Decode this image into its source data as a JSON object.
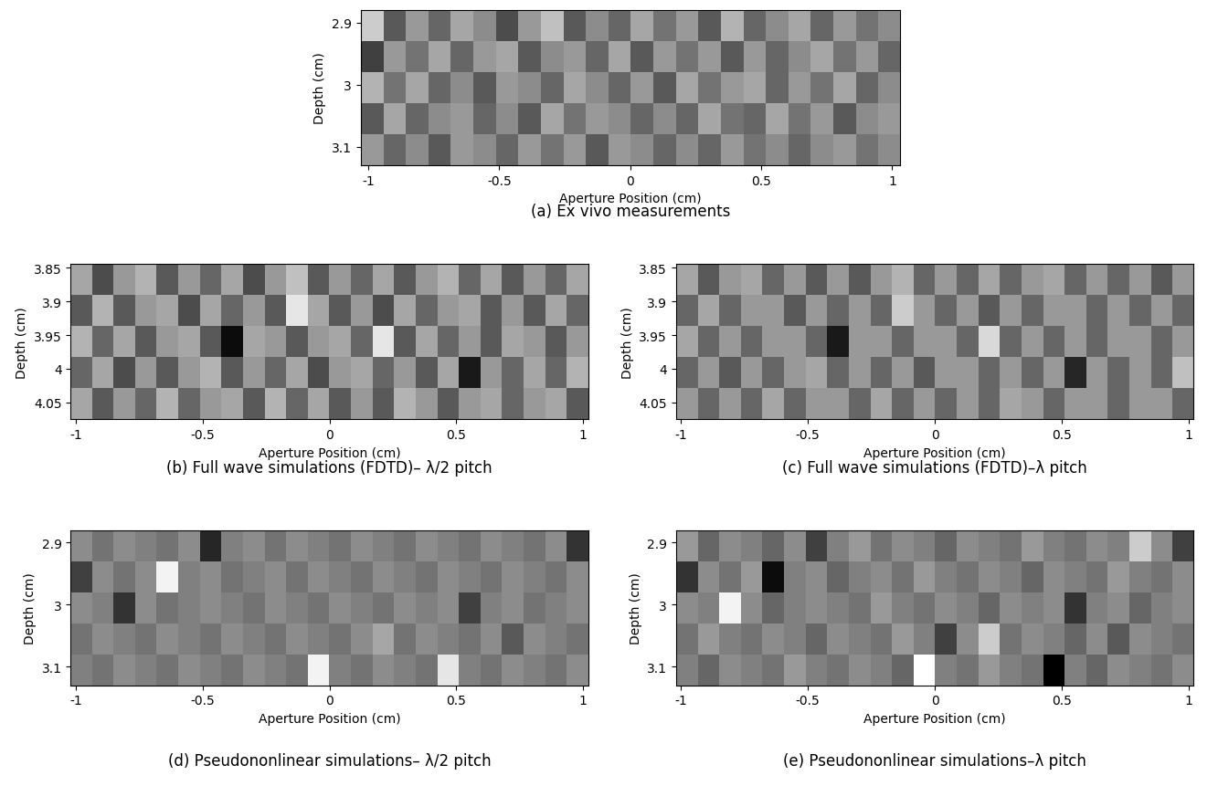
{
  "chart_data": [
    {
      "type": "heatmap",
      "caption": "(a) Ex vivo measurements",
      "xlabel": "Aperture Position (cm)",
      "ylabel": "Depth (cm)",
      "xlim": [
        -1.03,
        1.03
      ],
      "ylim": [
        3.13,
        2.88
      ],
      "xticks": [
        -1,
        -0.5,
        0,
        0.5,
        1
      ],
      "yticks": [
        2.9,
        3,
        3.1
      ],
      "cell_range": [
        -1,
        1
      ],
      "cells": [
        [
          0.6,
          -0.3,
          0.2,
          -0.2,
          0.3,
          0.1,
          -0.4,
          0.2,
          0.5,
          -0.3,
          0.1,
          -0.2,
          0.3,
          -0.1,
          0.2,
          -0.3,
          0.4,
          -0.2,
          0.1,
          0.3,
          -0.2,
          0.2,
          -0.1,
          0.1
        ],
        [
          -0.5,
          0.2,
          -0.1,
          0.3,
          -0.2,
          0.2,
          0.3,
          -0.3,
          0.1,
          0.2,
          -0.2,
          0.3,
          -0.3,
          0.2,
          -0.1,
          0.2,
          -0.3,
          0.2,
          -0.2,
          0.1,
          0.3,
          -0.1,
          0.2,
          -0.2
        ],
        [
          0.4,
          -0.1,
          0.3,
          -0.2,
          0.1,
          -0.3,
          0.2,
          0.1,
          -0.2,
          0.3,
          0.1,
          -0.2,
          0.2,
          -0.3,
          0.3,
          -0.1,
          0.2,
          0.3,
          -0.2,
          0.2,
          -0.1,
          0.3,
          -0.2,
          0.1
        ],
        [
          -0.3,
          0.3,
          -0.2,
          0.1,
          0.2,
          -0.2,
          0.1,
          -0.3,
          0.3,
          -0.1,
          0.2,
          0.1,
          -0.2,
          0.1,
          -0.2,
          0.3,
          -0.1,
          -0.2,
          0.3,
          -0.1,
          0.2,
          -0.3,
          0.1,
          0.2
        ],
        [
          0.2,
          -0.2,
          0.1,
          -0.3,
          0.2,
          0.1,
          -0.2,
          0.2,
          -0.1,
          0.2,
          -0.3,
          0.2,
          0.1,
          -0.2,
          0.1,
          -0.2,
          0.2,
          -0.1,
          0.1,
          -0.2,
          0.1,
          0.2,
          -0.1,
          0.1
        ]
      ]
    },
    {
      "type": "heatmap",
      "caption": "(b) Full wave simulations (FDTD)– λ/2 pitch",
      "xlabel": "Aperture Position (cm)",
      "ylabel": "Depth (cm)",
      "xlim": [
        -1.02,
        1.02
      ],
      "ylim": [
        4.075,
        3.845
      ],
      "xticks": [
        -1,
        -0.5,
        0,
        0.5,
        1
      ],
      "yticks": [
        3.85,
        3.9,
        3.95,
        4,
        4.05
      ],
      "cell_range": [
        -1,
        1
      ],
      "cells": [
        [
          0.3,
          -0.4,
          0.2,
          0.4,
          -0.3,
          0.2,
          -0.2,
          0.3,
          -0.4,
          0.2,
          0.5,
          -0.3,
          0.2,
          -0.2,
          0.3,
          -0.3,
          0.2,
          0.4,
          -0.2,
          0.3,
          -0.3,
          0.2,
          -0.2,
          0.3
        ],
        [
          -0.3,
          0.4,
          -0.3,
          0.2,
          0.3,
          -0.4,
          0.3,
          -0.2,
          0.2,
          -0.3,
          0.8,
          0.3,
          -0.3,
          0.2,
          -0.4,
          0.3,
          -0.2,
          0.2,
          0.3,
          -0.3,
          0.2,
          -0.3,
          0.3,
          -0.2
        ],
        [
          0.4,
          -0.2,
          0.3,
          -0.3,
          0.2,
          0.3,
          -0.3,
          -0.9,
          0.3,
          0.2,
          -0.3,
          0.2,
          0.3,
          -0.2,
          0.8,
          -0.3,
          0.3,
          -0.2,
          0.2,
          -0.3,
          0.3,
          0.2,
          -0.3,
          0.2
        ],
        [
          -0.2,
          0.3,
          -0.4,
          0.2,
          -0.3,
          0.2,
          0.4,
          -0.3,
          0.2,
          -0.2,
          0.3,
          -0.4,
          0.2,
          0.3,
          -0.2,
          0.2,
          -0.3,
          0.3,
          -0.8,
          0.2,
          -0.2,
          0.3,
          -0.2,
          0.4
        ],
        [
          0.3,
          -0.3,
          0.2,
          -0.2,
          0.4,
          -0.2,
          0.2,
          0.3,
          -0.3,
          0.4,
          -0.2,
          0.3,
          -0.3,
          0.2,
          -0.3,
          0.4,
          0.2,
          -0.3,
          0.2,
          0.3,
          -0.2,
          0.2,
          0.3,
          -0.3
        ]
      ]
    },
    {
      "type": "heatmap",
      "caption": "(c) Full wave simulations (FDTD)–λ pitch",
      "xlabel": "Aperture Position (cm)",
      "ylabel": "Depth (cm)",
      "xlim": [
        -1.02,
        1.02
      ],
      "ylim": [
        4.075,
        3.845
      ],
      "xticks": [
        -1,
        -0.5,
        0,
        0.5,
        1
      ],
      "yticks": [
        3.85,
        3.9,
        3.95,
        4,
        4.05
      ],
      "cell_range": [
        -1,
        1
      ],
      "cells": [
        [
          0.3,
          -0.3,
          0.2,
          0.3,
          -0.2,
          0.2,
          -0.3,
          0.2,
          -0.3,
          0.2,
          0.4,
          -0.2,
          0.2,
          -0.2,
          0.3,
          -0.2,
          0.2,
          0.3,
          -0.2,
          0.2,
          -0.2,
          0.2,
          -0.3,
          0.2
        ],
        [
          -0.2,
          0.3,
          -0.2,
          0.2,
          0.2,
          -0.3,
          0.2,
          -0.2,
          0.2,
          -0.2,
          0.6,
          0.2,
          -0.2,
          0.2,
          -0.3,
          0.2,
          -0.2,
          0.2,
          0.2,
          -0.2,
          0.2,
          -0.2,
          0.2,
          -0.2
        ],
        [
          0.3,
          -0.2,
          0.2,
          -0.2,
          0.2,
          0.2,
          -0.2,
          -0.8,
          0.2,
          0.2,
          -0.2,
          0.2,
          0.2,
          -0.2,
          0.7,
          -0.2,
          0.2,
          -0.2,
          0.2,
          -0.2,
          0.2,
          0.2,
          -0.2,
          0.2
        ],
        [
          -0.2,
          0.2,
          -0.3,
          0.2,
          -0.2,
          0.2,
          0.3,
          -0.2,
          0.2,
          -0.2,
          0.2,
          -0.3,
          0.2,
          0.2,
          -0.2,
          0.2,
          -0.2,
          0.2,
          -0.7,
          0.2,
          -0.2,
          0.2,
          -0.2,
          0.5
        ],
        [
          0.2,
          -0.2,
          0.2,
          -0.2,
          0.3,
          -0.2,
          0.2,
          0.2,
          -0.2,
          0.3,
          -0.2,
          0.2,
          -0.2,
          0.2,
          -0.2,
          0.3,
          0.2,
          -0.2,
          0.2,
          0.2,
          -0.2,
          0.2,
          0.2,
          -0.2
        ]
      ]
    },
    {
      "type": "heatmap",
      "caption": "(d) Pseudononlinear simulations– λ/2 pitch",
      "xlabel": "Aperture Position (cm)",
      "ylabel": "Depth (cm)",
      "xlim": [
        -1.02,
        1.02
      ],
      "ylim": [
        3.13,
        2.88
      ],
      "xticks": [
        -1,
        -0.5,
        0,
        0.5,
        1
      ],
      "yticks": [
        2.9,
        3,
        3.1
      ],
      "cell_range": [
        -1,
        1
      ],
      "cells": [
        [
          0.1,
          -0.1,
          0.1,
          0.0,
          -0.1,
          0.1,
          -0.7,
          0.0,
          0.1,
          -0.1,
          0.1,
          0.0,
          -0.1,
          0.1,
          0.0,
          -0.1,
          0.1,
          0.0,
          -0.1,
          0.1,
          0.0,
          -0.1,
          0.1,
          -0.6
        ],
        [
          -0.5,
          0.1,
          -0.1,
          0.1,
          0.9,
          0.0,
          0.1,
          -0.1,
          0.0,
          0.1,
          -0.1,
          0.1,
          0.0,
          -0.1,
          0.1,
          0.0,
          -0.1,
          0.1,
          0.0,
          -0.1,
          0.1,
          0.0,
          -0.1,
          0.1
        ],
        [
          0.1,
          0.0,
          -0.6,
          0.1,
          -0.1,
          0.0,
          0.1,
          0.0,
          -0.1,
          0.1,
          0.0,
          -0.1,
          0.1,
          0.0,
          -0.1,
          0.1,
          0.0,
          0.1,
          -0.5,
          0.0,
          0.1,
          -0.1,
          0.0,
          0.1
        ],
        [
          -0.1,
          0.1,
          0.0,
          -0.1,
          0.1,
          0.0,
          -0.1,
          0.1,
          0.0,
          -0.1,
          0.1,
          0.0,
          -0.1,
          0.1,
          0.3,
          -0.1,
          0.1,
          0.0,
          -0.1,
          0.1,
          -0.3,
          0.1,
          0.0,
          -0.1
        ],
        [
          0.0,
          -0.1,
          0.1,
          0.0,
          -0.1,
          0.1,
          0.0,
          -0.1,
          0.1,
          0.0,
          -0.1,
          0.9,
          0.0,
          -0.1,
          0.1,
          0.0,
          -0.1,
          0.8,
          0.0,
          -0.1,
          0.1,
          0.0,
          -0.1,
          0.1
        ]
      ]
    },
    {
      "type": "heatmap",
      "caption": "(e) Pseudononlinear simulations–λ pitch",
      "xlabel": "Aperture Position (cm)",
      "ylabel": "Depth (cm)",
      "xlim": [
        -1.02,
        1.02
      ],
      "ylim": [
        3.13,
        2.88
      ],
      "xticks": [
        -1,
        -0.5,
        0,
        0.5,
        1
      ],
      "yticks": [
        2.9,
        3,
        3.1
      ],
      "cell_range": [
        -1,
        1
      ],
      "cells": [
        [
          0.2,
          -0.2,
          0.1,
          0.0,
          -0.2,
          0.1,
          -0.5,
          0.0,
          0.2,
          -0.1,
          0.1,
          0.0,
          -0.2,
          0.1,
          0.0,
          -0.1,
          0.2,
          0.0,
          -0.1,
          0.1,
          0.0,
          0.6,
          0.1,
          -0.5
        ],
        [
          -0.6,
          0.1,
          -0.1,
          0.2,
          -0.9,
          0.0,
          0.1,
          -0.2,
          0.0,
          0.1,
          -0.1,
          0.2,
          0.0,
          -0.1,
          0.1,
          0.0,
          -0.2,
          0.1,
          0.0,
          -0.1,
          0.2,
          0.0,
          -0.1,
          0.1
        ],
        [
          0.1,
          0.0,
          0.9,
          0.1,
          -0.2,
          0.0,
          0.1,
          0.0,
          -0.1,
          0.2,
          0.0,
          -0.1,
          0.1,
          0.0,
          -0.2,
          0.1,
          0.0,
          0.1,
          -0.6,
          0.0,
          0.1,
          -0.2,
          0.0,
          0.1
        ],
        [
          -0.1,
          0.2,
          0.0,
          -0.1,
          0.1,
          0.0,
          -0.2,
          0.1,
          0.0,
          -0.1,
          0.2,
          0.0,
          -0.5,
          0.1,
          0.6,
          -0.1,
          0.1,
          0.0,
          -0.2,
          0.1,
          -0.3,
          0.1,
          0.0,
          -0.1
        ],
        [
          0.0,
          -0.2,
          0.1,
          0.0,
          -0.1,
          0.2,
          0.0,
          -0.1,
          0.1,
          0.0,
          -0.2,
          1.0,
          0.0,
          -0.1,
          0.2,
          0.0,
          -0.1,
          -1.0,
          0.0,
          -0.2,
          0.1,
          0.0,
          -0.1,
          0.1
        ]
      ]
    }
  ]
}
